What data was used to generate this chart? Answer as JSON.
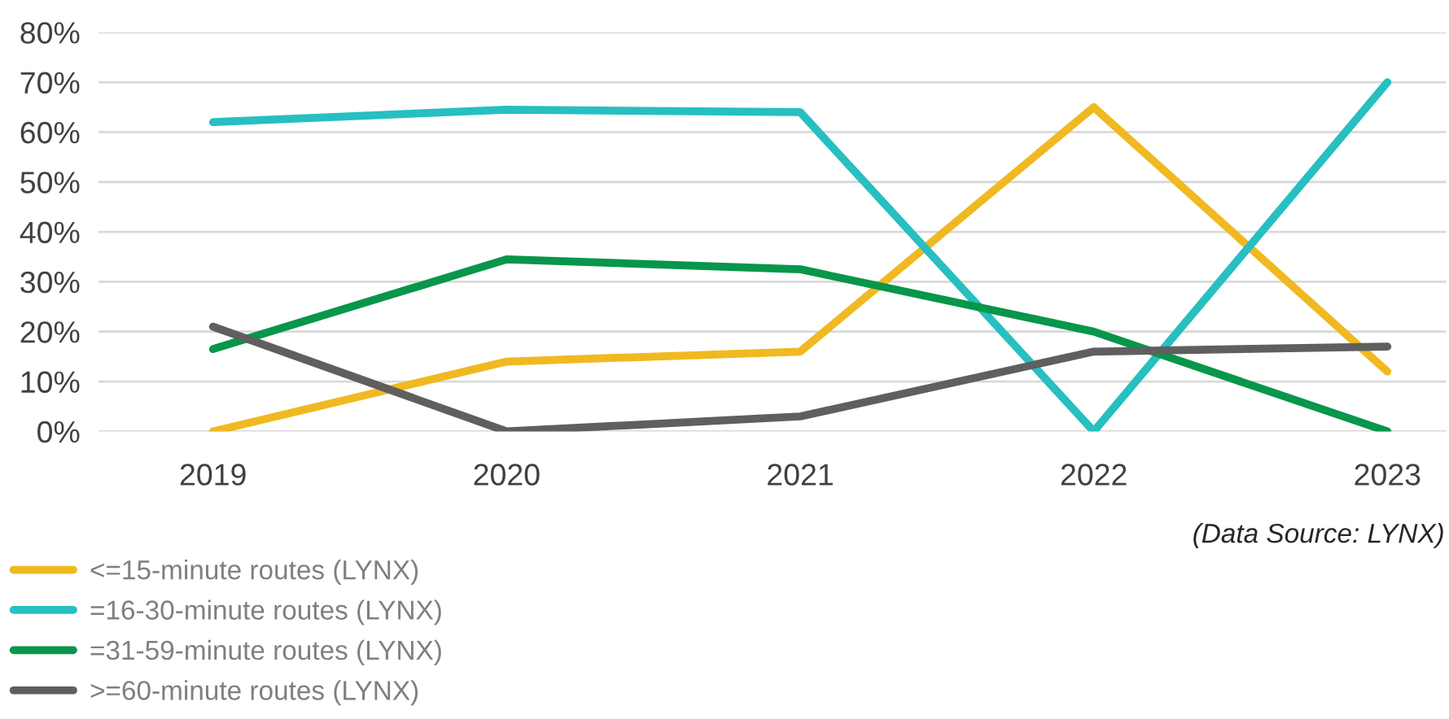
{
  "chart_data": {
    "type": "line",
    "categories": [
      "2019",
      "2020",
      "2021",
      "2022",
      "2023"
    ],
    "series": [
      {
        "name": "<=15-minute routes (LYNX)",
        "color": "#f0b921",
        "values": [
          0,
          14,
          16,
          65,
          12
        ]
      },
      {
        "name": "=16-30-minute routes (LYNX)",
        "color": "#27bfc0",
        "values": [
          62,
          64.5,
          64,
          0,
          70
        ]
      },
      {
        "name": "=31-59-minute routes (LYNX)",
        "color": "#07964a",
        "values": [
          16.5,
          34.5,
          32.5,
          20,
          0
        ]
      },
      {
        "name": ">=60-minute routes (LYNX)",
        "color": "#5f5f5f",
        "values": [
          21,
          0,
          3,
          16,
          17
        ]
      }
    ],
    "ylim": [
      0,
      80
    ],
    "yticks": [
      {
        "value": 0,
        "label": "0%"
      },
      {
        "value": 10,
        "label": "10%"
      },
      {
        "value": 20,
        "label": "20%"
      },
      {
        "value": 30,
        "label": "30%"
      },
      {
        "value": 40,
        "label": "40%"
      },
      {
        "value": 50,
        "label": "50%"
      },
      {
        "value": 60,
        "label": "60%"
      },
      {
        "value": 70,
        "label": "70%"
      },
      {
        "value": 80,
        "label": "80%"
      }
    ],
    "grid": "y",
    "legend": "bottom",
    "marker": "none",
    "line_style": "solid",
    "annotations": [
      "(Data Source: LYNX)"
    ]
  }
}
